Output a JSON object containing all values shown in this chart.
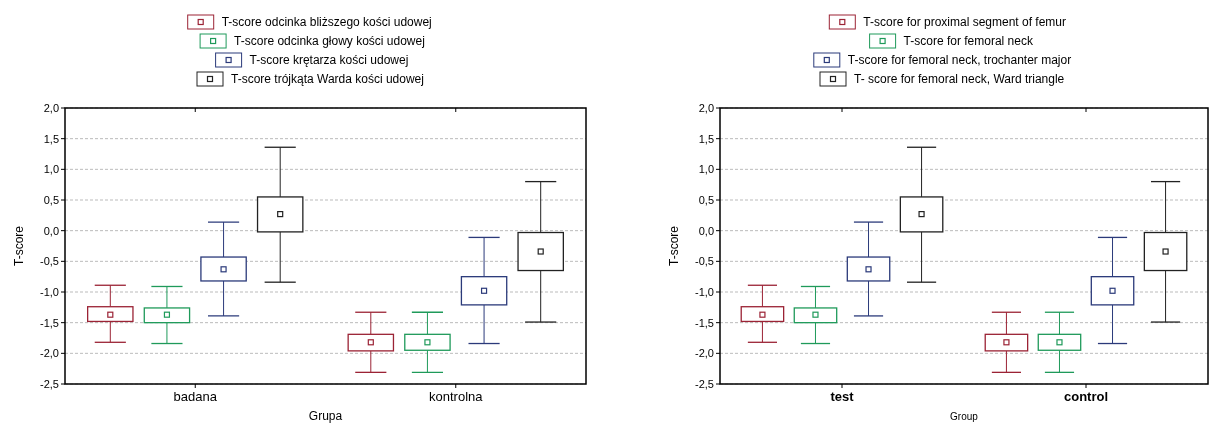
{
  "chart_data": [
    {
      "type": "box",
      "xlabel": "Grupa",
      "ylabel": "T-score",
      "categories": [
        "badana",
        "kontrolna"
      ],
      "ylim": [
        -2.5,
        2.0
      ],
      "yticks": [
        {
          "value": -2.5,
          "label": "-2,5"
        },
        {
          "value": -2.0,
          "label": "-2,0"
        },
        {
          "value": -1.5,
          "label": "-1,5"
        },
        {
          "value": -1.0,
          "label": "-1,0"
        },
        {
          "value": -0.5,
          "label": "-0,5"
        },
        {
          "value": 0,
          "label": "0,0"
        },
        {
          "value": 0.5,
          "label": "0,5"
        },
        {
          "value": 1.0,
          "label": "1,0"
        },
        {
          "value": 1.5,
          "label": "1,5"
        },
        {
          "value": 2.0,
          "label": "2,0"
        }
      ],
      "grid": "y",
      "legend": "top",
      "marker": "square",
      "series": [
        {
          "name": "T-score odcinka bliższego kości udowej",
          "color": "#9b2335",
          "boxes": [
            {
              "low": -1.82,
              "q1": -1.48,
              "median": -1.37,
              "q3": -1.24,
              "high": -0.89
            },
            {
              "low": -2.31,
              "q1": -1.96,
              "median": -1.82,
              "q3": -1.69,
              "high": -1.33
            }
          ]
        },
        {
          "name": "T-score odcinka głowy kości udowej",
          "color": "#1f9a5a",
          "boxes": [
            {
              "low": -1.84,
              "q1": -1.5,
              "median": -1.37,
              "q3": -1.26,
              "high": -0.91
            },
            {
              "low": -2.31,
              "q1": -1.95,
              "median": -1.82,
              "q3": -1.69,
              "high": -1.33
            }
          ]
        },
        {
          "name": "T-score krętarza kości udowej",
          "color": "#2b3a7a",
          "boxes": [
            {
              "low": -1.39,
              "q1": -0.82,
              "median": -0.63,
              "q3": -0.43,
              "high": 0.14
            },
            {
              "low": -1.84,
              "q1": -1.21,
              "median": -0.98,
              "q3": -0.75,
              "high": -0.11
            }
          ]
        },
        {
          "name": "T-score trójkąta Warda kości udowej",
          "color": "#222222",
          "boxes": [
            {
              "low": -0.84,
              "q1": -0.02,
              "median": 0.27,
              "q3": 0.55,
              "high": 1.36
            },
            {
              "low": -1.49,
              "q1": -0.65,
              "median": -0.34,
              "q3": -0.03,
              "high": 0.8
            }
          ]
        }
      ]
    },
    {
      "type": "box",
      "xlabel": "Group",
      "ylabel": "T-score",
      "categories": [
        "test",
        "control"
      ],
      "ylim": [
        -2.5,
        2.0
      ],
      "yticks": [
        {
          "value": -2.5,
          "label": "-2,5"
        },
        {
          "value": -2.0,
          "label": "-2,0"
        },
        {
          "value": -1.5,
          "label": "-1,5"
        },
        {
          "value": -1.0,
          "label": "-1,0"
        },
        {
          "value": -0.5,
          "label": "-0,5"
        },
        {
          "value": 0,
          "label": "0,0"
        },
        {
          "value": 0.5,
          "label": "0,5"
        },
        {
          "value": 1.0,
          "label": "1,0"
        },
        {
          "value": 1.5,
          "label": "1,5"
        },
        {
          "value": 2.0,
          "label": "2,0"
        }
      ],
      "grid": "y",
      "legend": "top",
      "marker": "square",
      "series": [
        {
          "name": "T-score for proximal segment of femur",
          "color": "#9b2335",
          "boxes": [
            {
              "low": -1.82,
              "q1": -1.48,
              "median": -1.37,
              "q3": -1.24,
              "high": -0.89
            },
            {
              "low": -2.31,
              "q1": -1.96,
              "median": -1.82,
              "q3": -1.69,
              "high": -1.33
            }
          ]
        },
        {
          "name": "T-score for femoral neck",
          "color": "#1f9a5a",
          "boxes": [
            {
              "low": -1.84,
              "q1": -1.5,
              "median": -1.37,
              "q3": -1.26,
              "high": -0.91
            },
            {
              "low": -2.31,
              "q1": -1.95,
              "median": -1.82,
              "q3": -1.69,
              "high": -1.33
            }
          ]
        },
        {
          "name": "T-score for femoral neck, trochanter major",
          "color": "#2b3a7a",
          "boxes": [
            {
              "low": -1.39,
              "q1": -0.82,
              "median": -0.63,
              "q3": -0.43,
              "high": 0.14
            },
            {
              "low": -1.84,
              "q1": -1.21,
              "median": -0.98,
              "q3": -0.75,
              "high": -0.11
            }
          ]
        },
        {
          "name": "T- score for femoral neck, Ward triangle",
          "color": "#222222",
          "boxes": [
            {
              "low": -0.84,
              "q1": -0.02,
              "median": 0.27,
              "q3": 0.55,
              "high": 1.36
            },
            {
              "low": -1.49,
              "q1": -0.65,
              "median": -0.34,
              "q3": -0.03,
              "high": 0.8
            }
          ]
        }
      ]
    }
  ]
}
